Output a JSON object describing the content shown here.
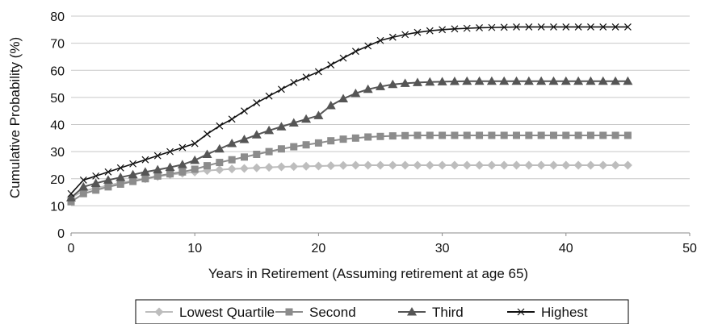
{
  "chart_data": {
    "type": "line",
    "title": "",
    "xlabel": "Years in Retirement (Assuming retirement at age 65)",
    "ylabel": "Cumulative Probability (%)",
    "xlim": [
      0,
      50
    ],
    "ylim": [
      0,
      80
    ],
    "x_ticks": [
      "0",
      "10",
      "20",
      "30",
      "40",
      "50"
    ],
    "y_ticks": [
      "0",
      "10",
      "20",
      "30",
      "40",
      "50",
      "60",
      "70",
      "80"
    ],
    "grid": "horizontal",
    "legend_position": "bottom",
    "x": [
      0,
      1,
      2,
      3,
      4,
      5,
      6,
      7,
      8,
      9,
      10,
      11,
      12,
      13,
      14,
      15,
      16,
      17,
      18,
      19,
      20,
      21,
      22,
      23,
      24,
      25,
      26,
      27,
      28,
      29,
      30,
      31,
      32,
      33,
      34,
      35,
      36,
      37,
      38,
      39,
      40,
      41,
      42,
      43,
      44,
      45
    ],
    "series": [
      {
        "name": "Lowest Quartile",
        "color": "#bdbdbd",
        "marker": "diamond",
        "values": [
          13,
          15.5,
          16.5,
          17.5,
          18.5,
          19.3,
          20,
          20.8,
          21.5,
          22,
          22.5,
          23,
          23.3,
          23.6,
          23.8,
          24,
          24.2,
          24.4,
          24.5,
          24.6,
          24.7,
          24.8,
          24.9,
          25,
          25,
          25,
          25,
          25,
          25,
          25,
          25,
          25,
          25,
          25,
          25,
          25,
          25,
          25,
          25,
          25,
          25,
          25,
          25,
          25,
          25,
          25
        ]
      },
      {
        "name": "Second",
        "color": "#8c8c8c",
        "marker": "square",
        "values": [
          11.5,
          14.5,
          15.8,
          17,
          18,
          19,
          20,
          21,
          21.8,
          22.5,
          23.5,
          24.8,
          26,
          27,
          28,
          29,
          30,
          31,
          31.8,
          32.5,
          33.2,
          34,
          34.6,
          35,
          35.4,
          35.6,
          35.8,
          35.9,
          36,
          36,
          36,
          36,
          36,
          36,
          36,
          36,
          36,
          36,
          36,
          36,
          36,
          36,
          36,
          36,
          36,
          36
        ]
      },
      {
        "name": "Third",
        "color": "#555555",
        "marker": "triangle",
        "values": [
          13,
          17,
          18.3,
          19.5,
          20.5,
          21.5,
          22.5,
          23.3,
          24.2,
          25.2,
          26.8,
          29,
          31,
          33,
          34.5,
          36.2,
          37.8,
          39.2,
          40.6,
          42,
          43.3,
          47,
          49.5,
          51.5,
          53,
          54,
          54.8,
          55.2,
          55.5,
          55.7,
          55.8,
          55.9,
          56,
          56,
          56,
          56,
          56,
          56,
          56,
          56,
          56,
          56,
          56,
          56,
          56,
          56
        ]
      },
      {
        "name": "Highest",
        "color": "#111111",
        "marker": "x",
        "values": [
          14.5,
          19.5,
          21,
          22.5,
          24,
          25.5,
          27,
          28.5,
          30,
          31.5,
          33,
          36.5,
          39.5,
          42,
          45,
          48,
          50.5,
          53,
          55.5,
          57.5,
          59.5,
          62,
          64.5,
          67,
          69,
          71,
          72.2,
          73.2,
          74,
          74.6,
          75,
          75.3,
          75.5,
          75.7,
          75.8,
          75.9,
          76,
          76,
          76,
          76,
          76,
          76,
          76,
          76,
          76,
          76
        ]
      }
    ]
  }
}
